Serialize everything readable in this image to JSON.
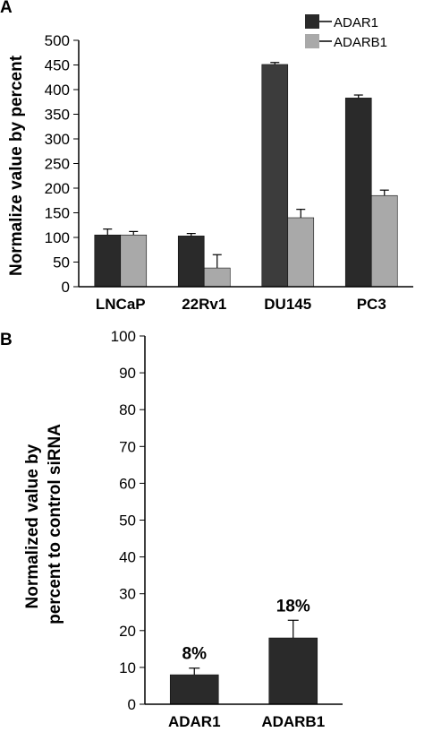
{
  "colors": {
    "dark": "#2a2a2a",
    "light": "#a9a9a9",
    "du145_dark": "#3c3c3c"
  },
  "chart_data": [
    {
      "panel": "A",
      "type": "bar",
      "categories": [
        "LNCaP",
        "22Rv1",
        "DU145",
        "PC3"
      ],
      "ylabel": "Normalize value by percent",
      "ylim": [
        0,
        500
      ],
      "yticks": [
        0,
        50,
        100,
        150,
        200,
        250,
        300,
        350,
        400,
        450,
        500
      ],
      "legend": "top-right",
      "series": [
        {
          "name": "ADAR1",
          "values": [
            105,
            103,
            451,
            383
          ],
          "errors": [
            12,
            5,
            4,
            6
          ]
        },
        {
          "name": "ADARB1",
          "values": [
            105,
            38,
            140,
            185
          ],
          "errors": [
            7,
            27,
            17,
            11
          ]
        }
      ]
    },
    {
      "panel": "B",
      "type": "bar",
      "categories": [
        "ADAR1",
        "ADARB1"
      ],
      "ylabel_lines": [
        "Normalized value by",
        "percent to control siRNA"
      ],
      "ylim": [
        0,
        100
      ],
      "yticks": [
        0,
        10,
        20,
        30,
        40,
        50,
        60,
        70,
        80,
        90,
        100
      ],
      "values": [
        8,
        18
      ],
      "errors": [
        1.8,
        4.8
      ],
      "data_labels": [
        "8%",
        "18%"
      ]
    }
  ]
}
